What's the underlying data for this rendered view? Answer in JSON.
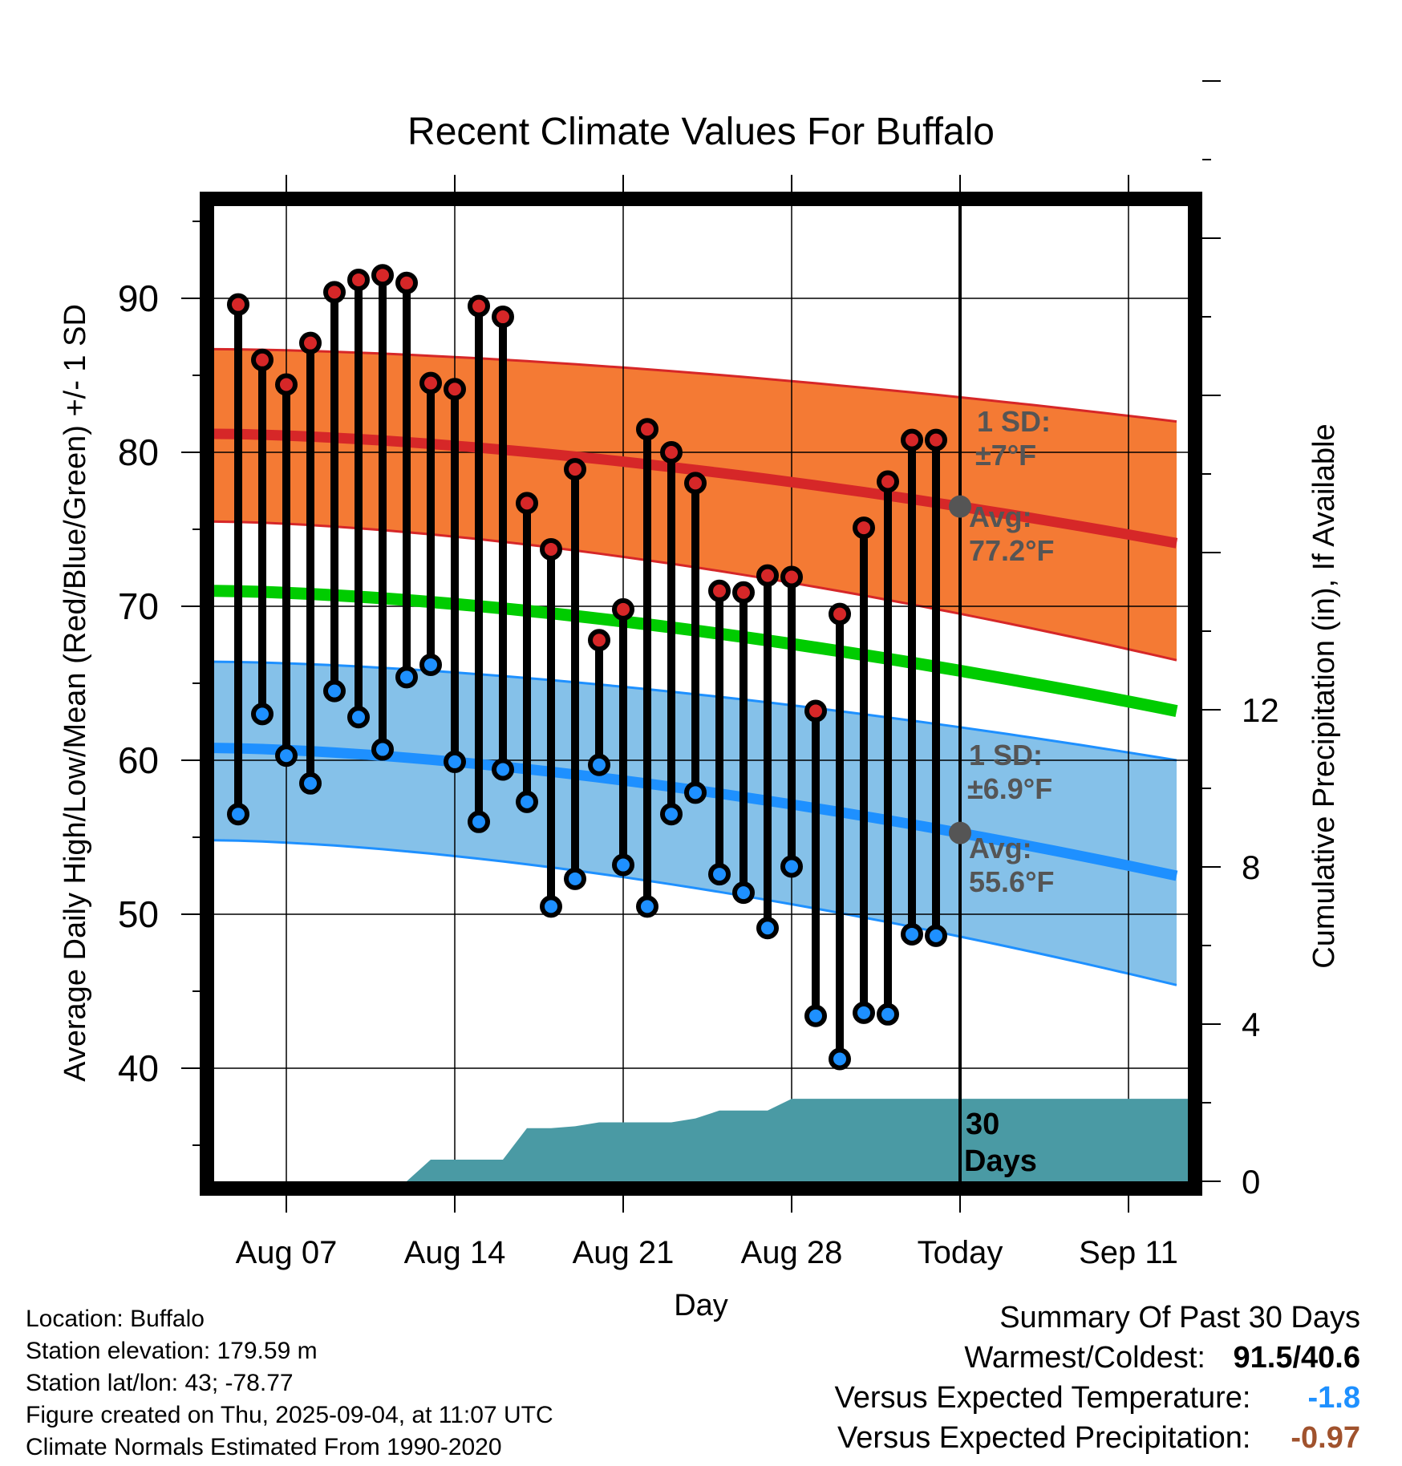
{
  "chart_data": {
    "type": "line",
    "title": "Recent Climate Values For Buffalo",
    "xlabel": "Day",
    "ylabel": "Average Daily High/Low/Mean (Red/Blue/Green) +/- 1 SD",
    "y2label": "Cumulative Precipitation (in), If Available",
    "ylim": [
      32,
      97
    ],
    "y_ticks": [
      "90",
      "80",
      "70",
      "60",
      "50",
      "40"
    ],
    "y2lim": [
      0,
      32
    ],
    "y2_ticks": [
      "12",
      "8",
      "4",
      "0"
    ],
    "x_tick_labels": [
      "Aug 07",
      "Aug 14",
      "Aug 21",
      "Aug 28",
      "Today",
      "Sep 11"
    ],
    "days": [
      "Aug 05",
      "Aug 06",
      "Aug 07",
      "Aug 08",
      "Aug 09",
      "Aug 10",
      "Aug 11",
      "Aug 12",
      "Aug 13",
      "Aug 14",
      "Aug 15",
      "Aug 16",
      "Aug 17",
      "Aug 18",
      "Aug 19",
      "Aug 20",
      "Aug 21",
      "Aug 22",
      "Aug 23",
      "Aug 24",
      "Aug 25",
      "Aug 26",
      "Aug 27",
      "Aug 28",
      "Aug 29",
      "Aug 30",
      "Aug 31",
      "Sep 01",
      "Sep 02",
      "Sep 03"
    ],
    "series": [
      {
        "name": "High",
        "color": "#d62728",
        "values": [
          89.6,
          86.0,
          84.4,
          87.1,
          90.4,
          91.2,
          91.5,
          91.0,
          84.5,
          84.1,
          89.5,
          88.8,
          76.7,
          73.7,
          78.9,
          67.8,
          69.8,
          81.5,
          80.0,
          78.0,
          71.0,
          70.9,
          72.0,
          71.9,
          63.2,
          69.5,
          75.1,
          78.1,
          80.8,
          80.8
        ]
      },
      {
        "name": "Low",
        "color": "#1e90ff",
        "values": [
          56.5,
          63.0,
          60.3,
          58.5,
          64.5,
          62.8,
          60.7,
          65.4,
          66.2,
          59.9,
          56.0,
          59.4,
          57.3,
          50.5,
          52.3,
          59.7,
          53.2,
          50.5,
          56.5,
          57.9,
          52.6,
          51.4,
          49.1,
          53.1,
          43.4,
          40.6,
          43.6,
          43.5,
          48.7,
          48.6
        ]
      }
    ],
    "normals": {
      "x_start": "Aug 04",
      "x_end": "Sep 13",
      "high_avg": [
        81.2,
        74.1
      ],
      "high_sd_upper": [
        86.7,
        82.0
      ],
      "high_sd_lower": [
        75.5,
        66.5
      ],
      "mean": [
        71.0,
        63.2
      ],
      "low_avg": [
        60.8,
        52.5
      ],
      "low_sd_upper": [
        66.4,
        60.0
      ],
      "low_sd_lower": [
        54.8,
        45.4
      ]
    },
    "precip_cumulative": {
      "days": [
        "Aug 12",
        "Aug 13",
        "Aug 14",
        "Aug 15",
        "Aug 16",
        "Aug 17",
        "Aug 18",
        "Aug 19",
        "Aug 20",
        "Aug 21",
        "Aug 22",
        "Aug 23",
        "Aug 24",
        "Aug 25",
        "Aug 26",
        "Aug 27",
        "Aug 28",
        "Sep 13"
      ],
      "values": [
        0.0,
        0.55,
        0.55,
        0.55,
        0.55,
        1.35,
        1.35,
        1.4,
        1.5,
        1.5,
        1.5,
        1.5,
        1.6,
        1.8,
        1.8,
        1.8,
        2.1,
        2.1
      ]
    },
    "colors": {
      "high_band": "#f47a34",
      "high_line": "#d62728",
      "mean_line": "#00cc00",
      "low_band": "#85c1e9",
      "low_line": "#1e90ff",
      "precip": "#4a9aa4",
      "annotation": "#555555"
    },
    "annotations": {
      "high_sd": "1 SD:",
      "high_sd_val": "±7°F",
      "high_avg": "Avg:",
      "high_avg_val": "77.2°F",
      "low_sd": "1 SD:",
      "low_sd_val": "±6.9°F",
      "low_avg": "Avg:",
      "low_avg_val": "55.6°F",
      "period_num": "30",
      "period_unit": "Days"
    }
  },
  "footer": {
    "location": "Location: Buffalo",
    "elevation": "Station elevation: 179.59 m",
    "latlon": "Station lat/lon: 43; -78.77",
    "created": "Figure created on Thu, 2025-09-04, at 11:07 UTC",
    "normals": "Climate Normals Estimated From 1990-2020"
  },
  "summary": {
    "title": "Summary Of Past 30 Days",
    "warm_label": "Warmest/Coldest:",
    "warm_value": "91.5/40.6",
    "temp_label": "Versus Expected Temperature:",
    "temp_value": "-1.8",
    "temp_color": "#1e90ff",
    "precip_label": "Versus Expected Precipitation:",
    "precip_value": "-0.97",
    "precip_color": "#a0522d"
  }
}
